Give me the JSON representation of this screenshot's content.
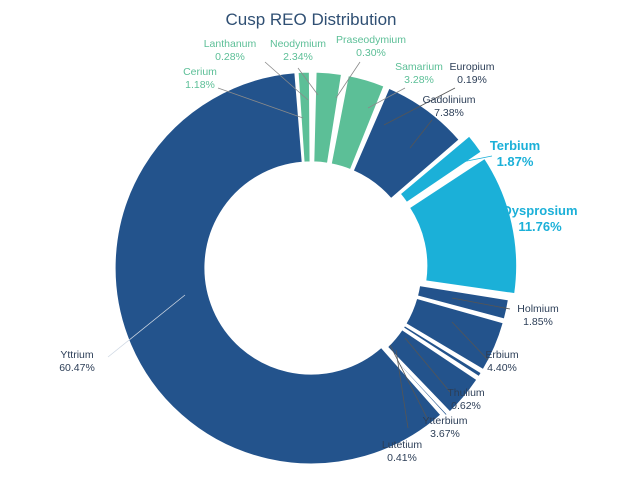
{
  "chart_data": {
    "type": "pie",
    "title": "Cusp REO Distribution",
    "series": [
      {
        "name": "Lanthanum",
        "value": 0.28,
        "label": "0.28%",
        "color": "#5cbf97",
        "group": "light"
      },
      {
        "name": "Neodymium",
        "value": 2.34,
        "label": "2.34%",
        "color": "#5cbf97",
        "group": "light"
      },
      {
        "name": "Praseodymium",
        "value": 0.3,
        "label": "0.30%",
        "color": "#5cbf97",
        "group": "light"
      },
      {
        "name": "Samarium",
        "value": 3.28,
        "label": "3.28%",
        "color": "#5cbf97",
        "group": "light"
      },
      {
        "name": "Europium",
        "value": 0.19,
        "label": "0.19%",
        "color": "#23538c",
        "group": "heavy"
      },
      {
        "name": "Gadolinium",
        "value": 7.38,
        "label": "7.38%",
        "color": "#23538c",
        "group": "heavy"
      },
      {
        "name": "Terbium",
        "value": 1.87,
        "label": "1.87%",
        "color": "#1bb0d8",
        "group": "highlight"
      },
      {
        "name": "Dysprosium",
        "value": 11.76,
        "label": "11.76%",
        "color": "#1bb0d8",
        "group": "highlight"
      },
      {
        "name": "Holmium",
        "value": 1.85,
        "label": "1.85%",
        "color": "#23538c",
        "group": "heavy"
      },
      {
        "name": "Erbium",
        "value": 4.4,
        "label": "4.40%",
        "color": "#23538c",
        "group": "heavy"
      },
      {
        "name": "Thulium",
        "value": 0.62,
        "label": "0.62%",
        "color": "#23538c",
        "group": "heavy"
      },
      {
        "name": "Ytterbium",
        "value": 3.67,
        "label": "3.67%",
        "color": "#23538c",
        "group": "heavy"
      },
      {
        "name": "Lutetium",
        "value": 0.41,
        "label": "0.41%",
        "color": "#23538c",
        "group": "heavy"
      },
      {
        "name": "Yttrium",
        "value": 60.47,
        "label": "60.47%",
        "color": "#23538c",
        "group": "heavy"
      },
      {
        "name": "Cerium",
        "value": 1.18,
        "label": "1.18%",
        "color": "#5cbf97",
        "group": "light"
      }
    ],
    "colors": {
      "light": "#5cbf97",
      "heavy": "#23538c",
      "highlight": "#1bb0d8",
      "title": "#2f4f73",
      "heavy_label": "#2c3e57"
    }
  }
}
